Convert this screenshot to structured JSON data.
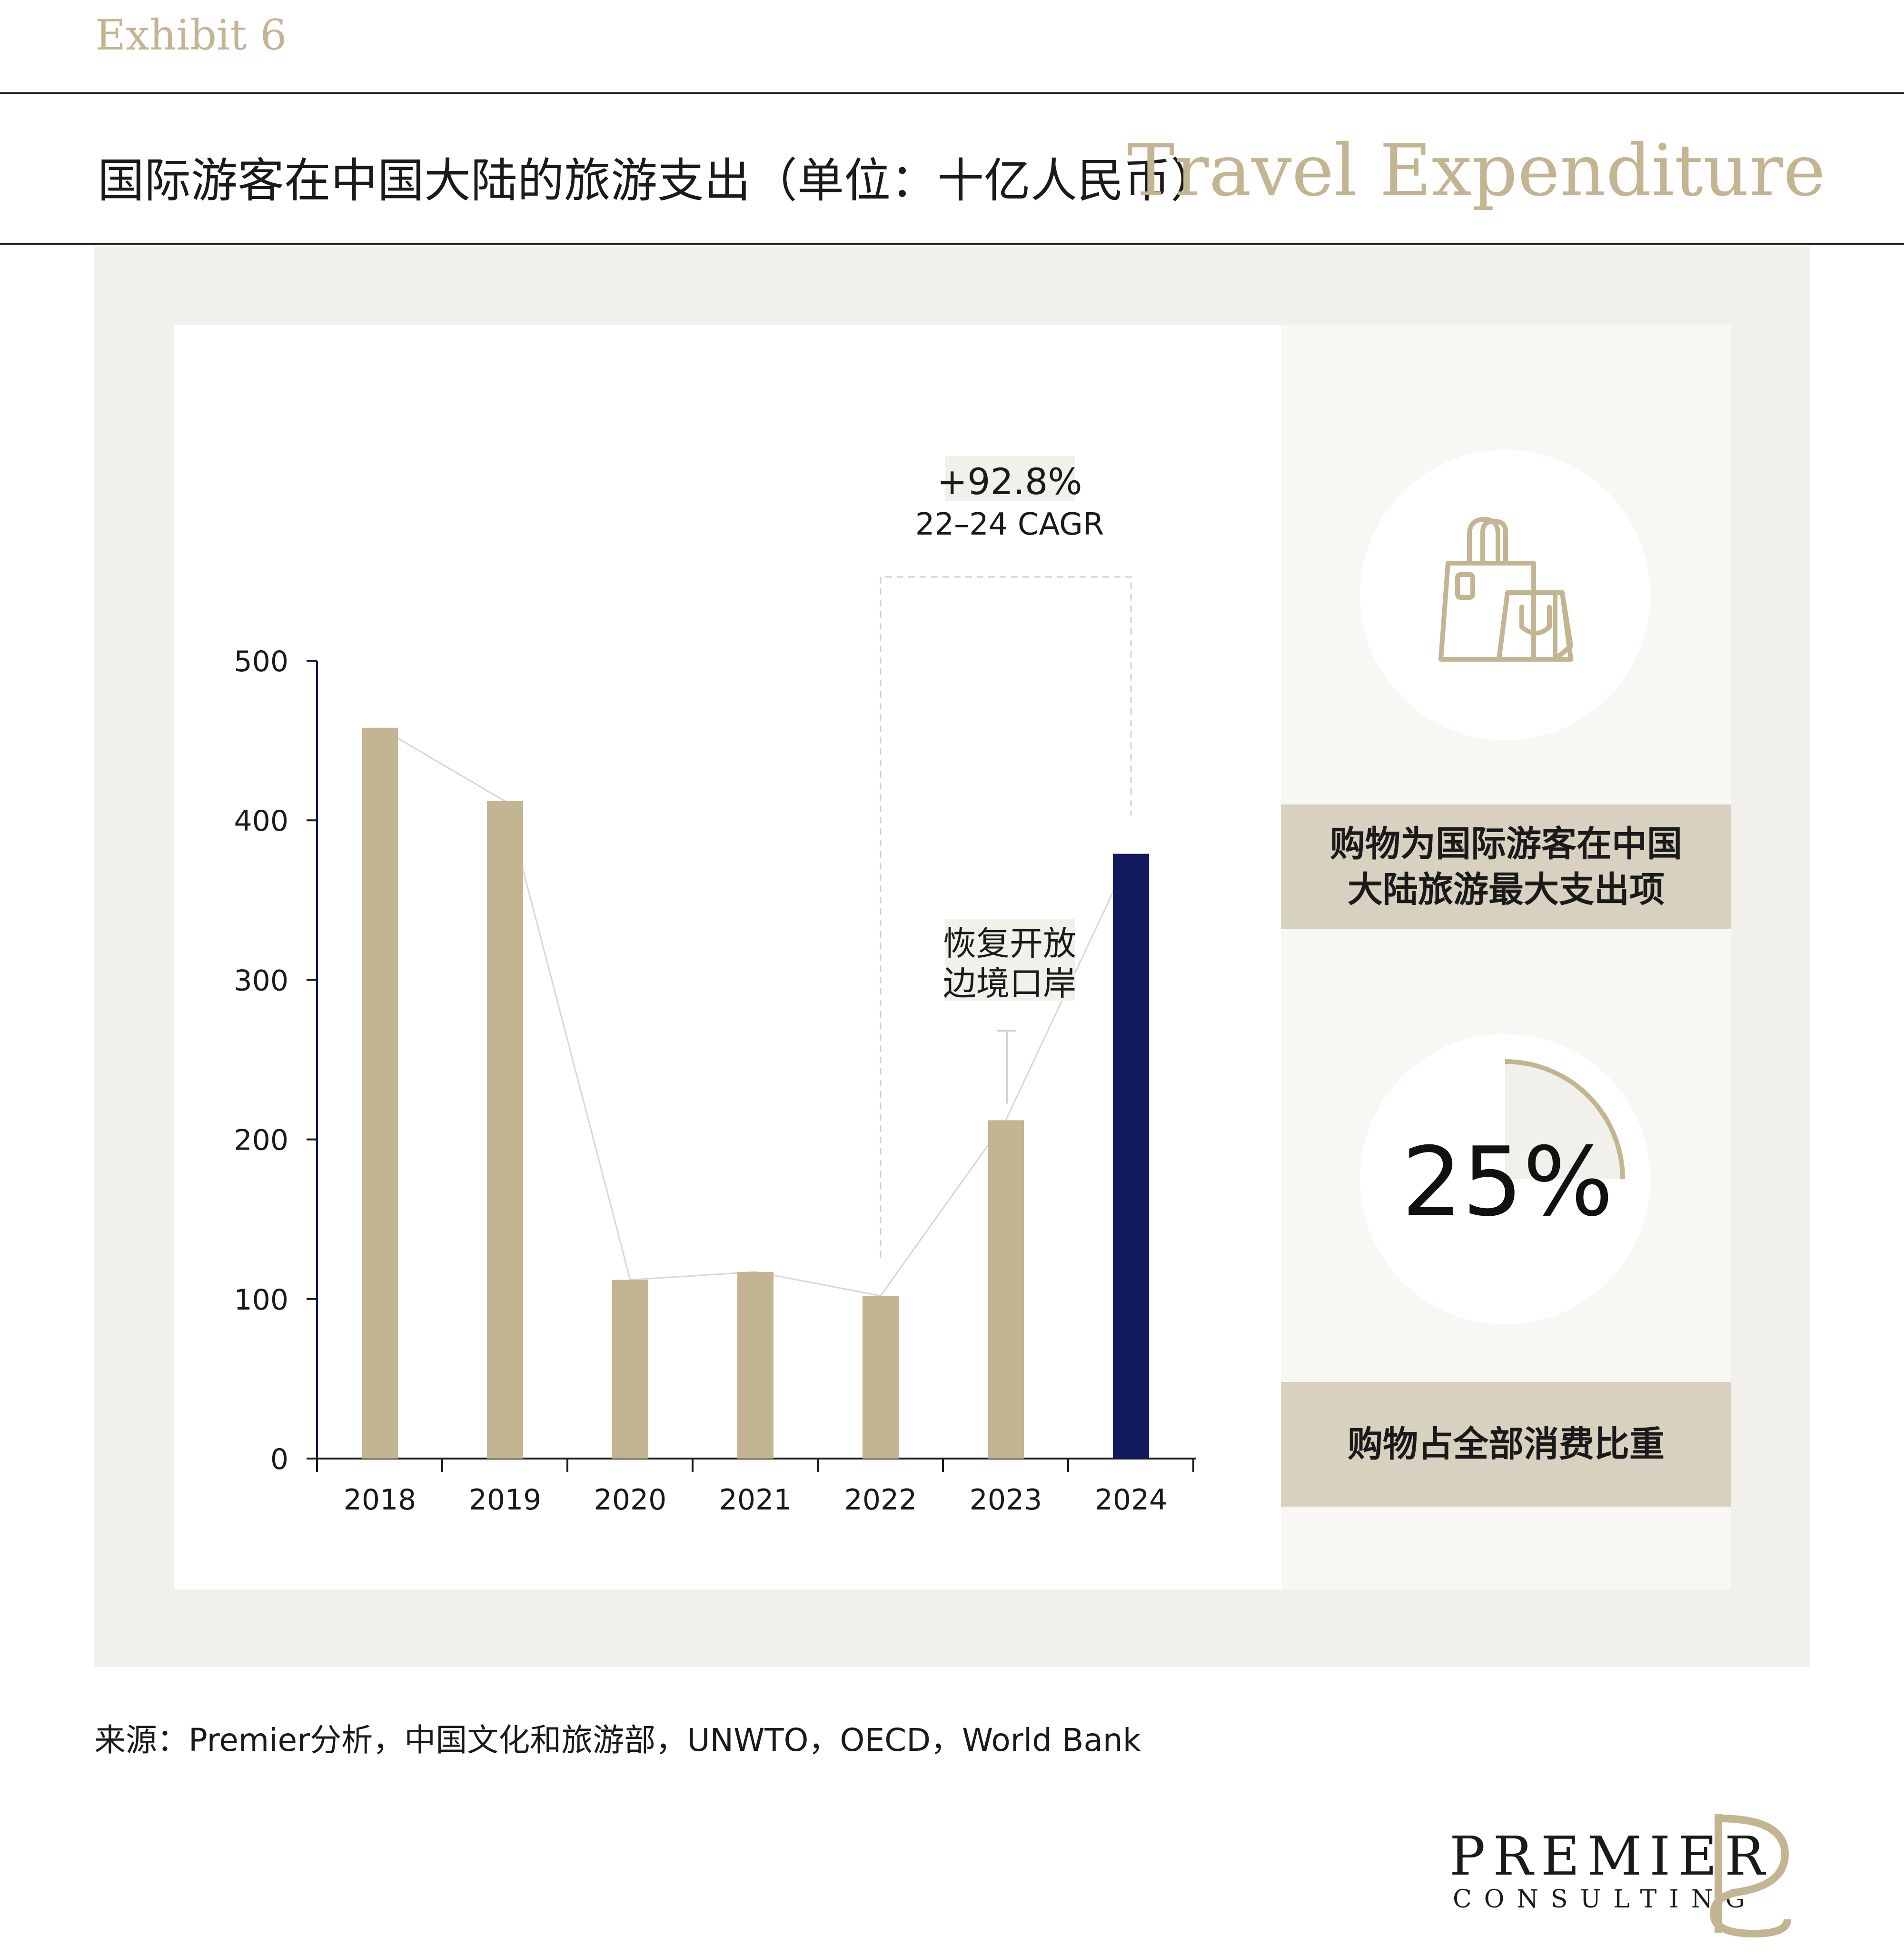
{
  "header": {
    "exhibit_label": "Exhibit 6",
    "title_cn": "国际游客在中国大陆的旅游支出（单位：十亿人民币）",
    "title_en": "Travel Expenditure"
  },
  "colors": {
    "accent_tan": "#c4b592",
    "highlight_navy": "#12195e",
    "panel_bg": "#f2f0eb",
    "label_box": "#d9d1bf"
  },
  "chart_data": {
    "type": "bar",
    "categories": [
      "2018",
      "2019",
      "2020",
      "2021",
      "2022",
      "2023",
      "2024"
    ],
    "values": [
      458,
      412,
      112,
      117,
      102,
      212,
      379
    ],
    "highlight_category": "2024",
    "ylim": [
      0,
      500
    ],
    "yticks": [
      0,
      100,
      200,
      300,
      400,
      500
    ],
    "connector_line": true,
    "annotations": {
      "cagr_value": "+92.8%",
      "cagr_label": "22–24 CAGR",
      "reopen_line1": "恢复开放",
      "reopen_line2": "边境口岸"
    }
  },
  "side_panel": {
    "shopping_icon": "shopping-bags-icon",
    "box1_line1": "购物为国际游客在中国",
    "box1_line2": "大陆旅游最大支出项",
    "share_percent": 25,
    "share_text": "25%",
    "box2_text": "购物占全部消费比重"
  },
  "footer": {
    "source": "来源：Premier分析，中国文化和旅游部，UNWTO，OECD，World Bank",
    "logo_word": "PREMIER",
    "logo_sub": "CONSULTING",
    "logo_mark": "premier-logo-mark"
  }
}
